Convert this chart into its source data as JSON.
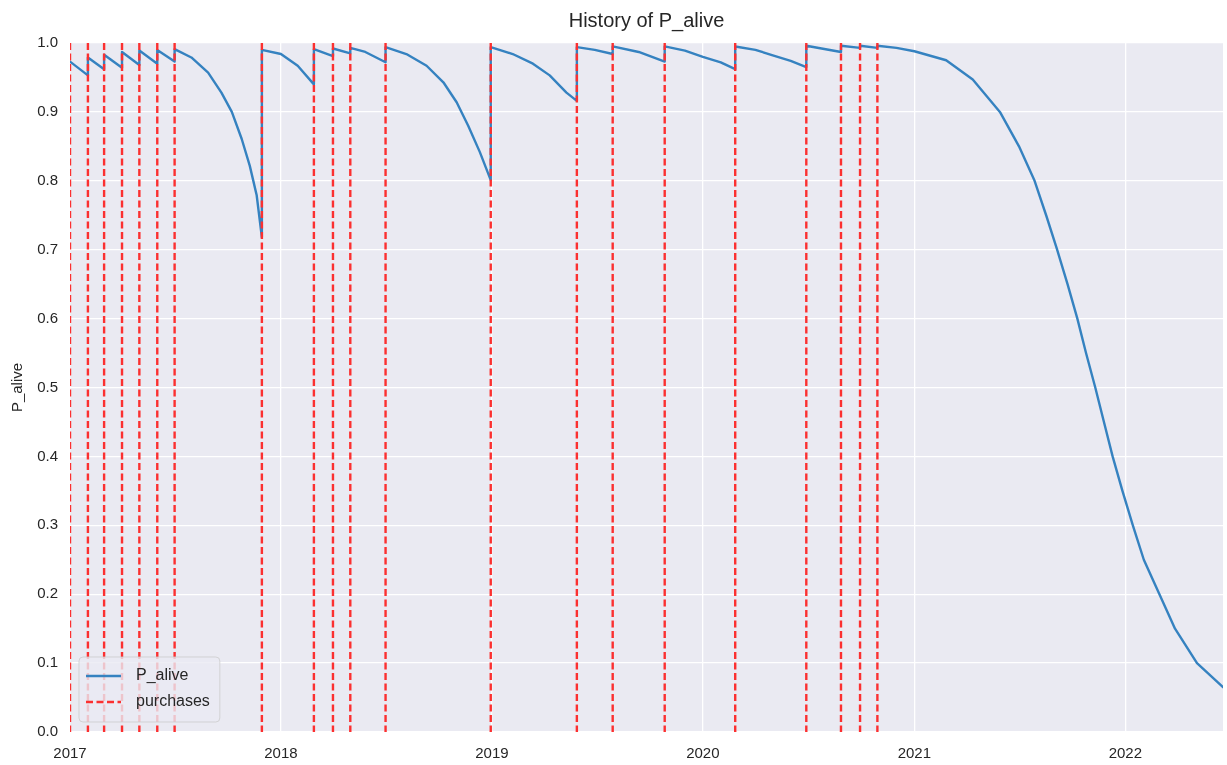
{
  "chart_data": {
    "type": "line",
    "title": "History of P_alive",
    "ylabel": "P_alive",
    "x": [
      "2017-01-01",
      "2017-02-01",
      "2017-02-01",
      "2017-03-01",
      "2017-03-01",
      "2017-04-01",
      "2017-04-01",
      "2017-05-01",
      "2017-05-01",
      "2017-06-01",
      "2017-06-01",
      "2017-07-01",
      "2017-07-01",
      "2017-07-30",
      "2017-08-28",
      "2017-09-20",
      "2017-10-08",
      "2017-10-25",
      "2017-11-08",
      "2017-11-20",
      "2017-11-29",
      "2017-11-29",
      "2018-01-01",
      "2018-01-30",
      "2018-02-27",
      "2018-02-27",
      "2018-04-01",
      "2018-04-01",
      "2018-05-01",
      "2018-05-01",
      "2018-05-27",
      "2018-07-01",
      "2018-07-01",
      "2018-08-06",
      "2018-09-10",
      "2018-10-09",
      "2018-11-01",
      "2018-11-21",
      "2018-12-11",
      "2018-12-30",
      "2018-12-30",
      "2019-02-06",
      "2019-03-13",
      "2019-04-11",
      "2019-05-10",
      "2019-05-28",
      "2019-05-28",
      "2019-06-28",
      "2019-07-29",
      "2019-07-29",
      "2019-09-12",
      "2019-10-27",
      "2019-10-27",
      "2019-12-01",
      "2020-01-01",
      "2020-02-01",
      "2020-02-26",
      "2020-02-26",
      "2020-04-01",
      "2020-05-01",
      "2020-06-01",
      "2020-06-28",
      "2020-06-28",
      "2020-08-27",
      "2020-08-27",
      "2020-09-29",
      "2020-09-29",
      "2020-10-29",
      "2020-10-29",
      "2020-12-01",
      "2021-01-01",
      "2021-02-25",
      "2021-04-12",
      "2021-05-29",
      "2021-07-01",
      "2021-07-28",
      "2021-08-17",
      "2021-09-05",
      "2021-09-23",
      "2021-10-10",
      "2021-10-25",
      "2021-11-10",
      "2021-11-25",
      "2021-12-10",
      "2021-12-27",
      "2022-01-14",
      "2022-02-02",
      "2022-03-01",
      "2022-03-28",
      "2022-05-05",
      "2022-06-19"
    ],
    "series": [
      {
        "name": "P_alive",
        "color": "#3582c0",
        "values": [
          0.973,
          0.953,
          0.979,
          0.962,
          0.983,
          0.964,
          0.987,
          0.968,
          0.989,
          0.97,
          0.99,
          0.973,
          0.991,
          0.979,
          0.957,
          0.928,
          0.9,
          0.861,
          0.822,
          0.779,
          0.718,
          0.99,
          0.984,
          0.967,
          0.94,
          0.991,
          0.981,
          0.992,
          0.985,
          0.993,
          0.987,
          0.972,
          0.994,
          0.984,
          0.967,
          0.943,
          0.914,
          0.88,
          0.842,
          0.801,
          0.994,
          0.984,
          0.97,
          0.953,
          0.928,
          0.916,
          0.994,
          0.99,
          0.984,
          0.995,
          0.987,
          0.973,
          0.995,
          0.989,
          0.98,
          0.972,
          0.962,
          0.995,
          0.99,
          0.982,
          0.974,
          0.965,
          0.996,
          0.987,
          0.996,
          0.993,
          0.996,
          0.993,
          0.996,
          0.993,
          0.988,
          0.975,
          0.947,
          0.9,
          0.85,
          0.8,
          0.75,
          0.7,
          0.65,
          0.6,
          0.55,
          0.5,
          0.45,
          0.4,
          0.35,
          0.3,
          0.25,
          0.2,
          0.15,
          0.1,
          0.065
        ]
      }
    ],
    "xlim": [
      "2017-01-01",
      "2022-06-19"
    ],
    "xticks": [
      "2017",
      "2018",
      "2019",
      "2020",
      "2021",
      "2022"
    ],
    "ylim": [
      0,
      1
    ],
    "yticks": [
      {
        "value": 0,
        "label": "0.0"
      },
      0.1,
      0.2,
      0.3,
      0.4,
      0.5,
      0.6,
      0.7,
      0.8,
      0.9,
      {
        "value": 1,
        "label": "1.0"
      }
    ],
    "ref_lines": [
      {
        "axis": "x",
        "value": "2017-01-01",
        "color": "#fb3030",
        "line_style": "dashed"
      },
      {
        "axis": "x",
        "value": "2017-02-01",
        "label": "purchases",
        "color": "#fb3030",
        "line_style": "dashed"
      },
      {
        "axis": "x",
        "value": "2017-03-01",
        "color": "#fb3030",
        "line_style": "dashed"
      },
      {
        "axis": "x",
        "value": "2017-04-01",
        "color": "#fb3030",
        "line_style": "dashed"
      },
      {
        "axis": "x",
        "value": "2017-05-01",
        "color": "#fb3030",
        "line_style": "dashed"
      },
      {
        "axis": "x",
        "value": "2017-06-01",
        "color": "#fb3030",
        "line_style": "dashed"
      },
      {
        "axis": "x",
        "value": "2017-07-01",
        "color": "#fb3030",
        "line_style": "dashed"
      },
      {
        "axis": "x",
        "value": "2017-11-29",
        "color": "#fb3030",
        "line_style": "dashed"
      },
      {
        "axis": "x",
        "value": "2018-02-27",
        "color": "#fb3030",
        "line_style": "dashed"
      },
      {
        "axis": "x",
        "value": "2018-04-01",
        "color": "#fb3030",
        "line_style": "dashed"
      },
      {
        "axis": "x",
        "value": "2018-05-01",
        "color": "#fb3030",
        "line_style": "dashed"
      },
      {
        "axis": "x",
        "value": "2018-07-01",
        "color": "#fb3030",
        "line_style": "dashed"
      },
      {
        "axis": "x",
        "value": "2018-12-30",
        "color": "#fb3030",
        "line_style": "dashed"
      },
      {
        "axis": "x",
        "value": "2019-05-28",
        "color": "#fb3030",
        "line_style": "dashed"
      },
      {
        "axis": "x",
        "value": "2019-07-29",
        "color": "#fb3030",
        "line_style": "dashed"
      },
      {
        "axis": "x",
        "value": "2019-10-27",
        "color": "#fb3030",
        "line_style": "dashed"
      },
      {
        "axis": "x",
        "value": "2020-02-26",
        "color": "#fb3030",
        "line_style": "dashed"
      },
      {
        "axis": "x",
        "value": "2020-06-28",
        "color": "#fb3030",
        "line_style": "dashed"
      },
      {
        "axis": "x",
        "value": "2020-08-27",
        "color": "#fb3030",
        "line_style": "dashed"
      },
      {
        "axis": "x",
        "value": "2020-09-29",
        "color": "#fb3030",
        "line_style": "dashed"
      },
      {
        "axis": "x",
        "value": "2020-10-29",
        "color": "#fb3030",
        "line_style": "dashed"
      }
    ],
    "grid": true,
    "legend": "bottom left"
  }
}
